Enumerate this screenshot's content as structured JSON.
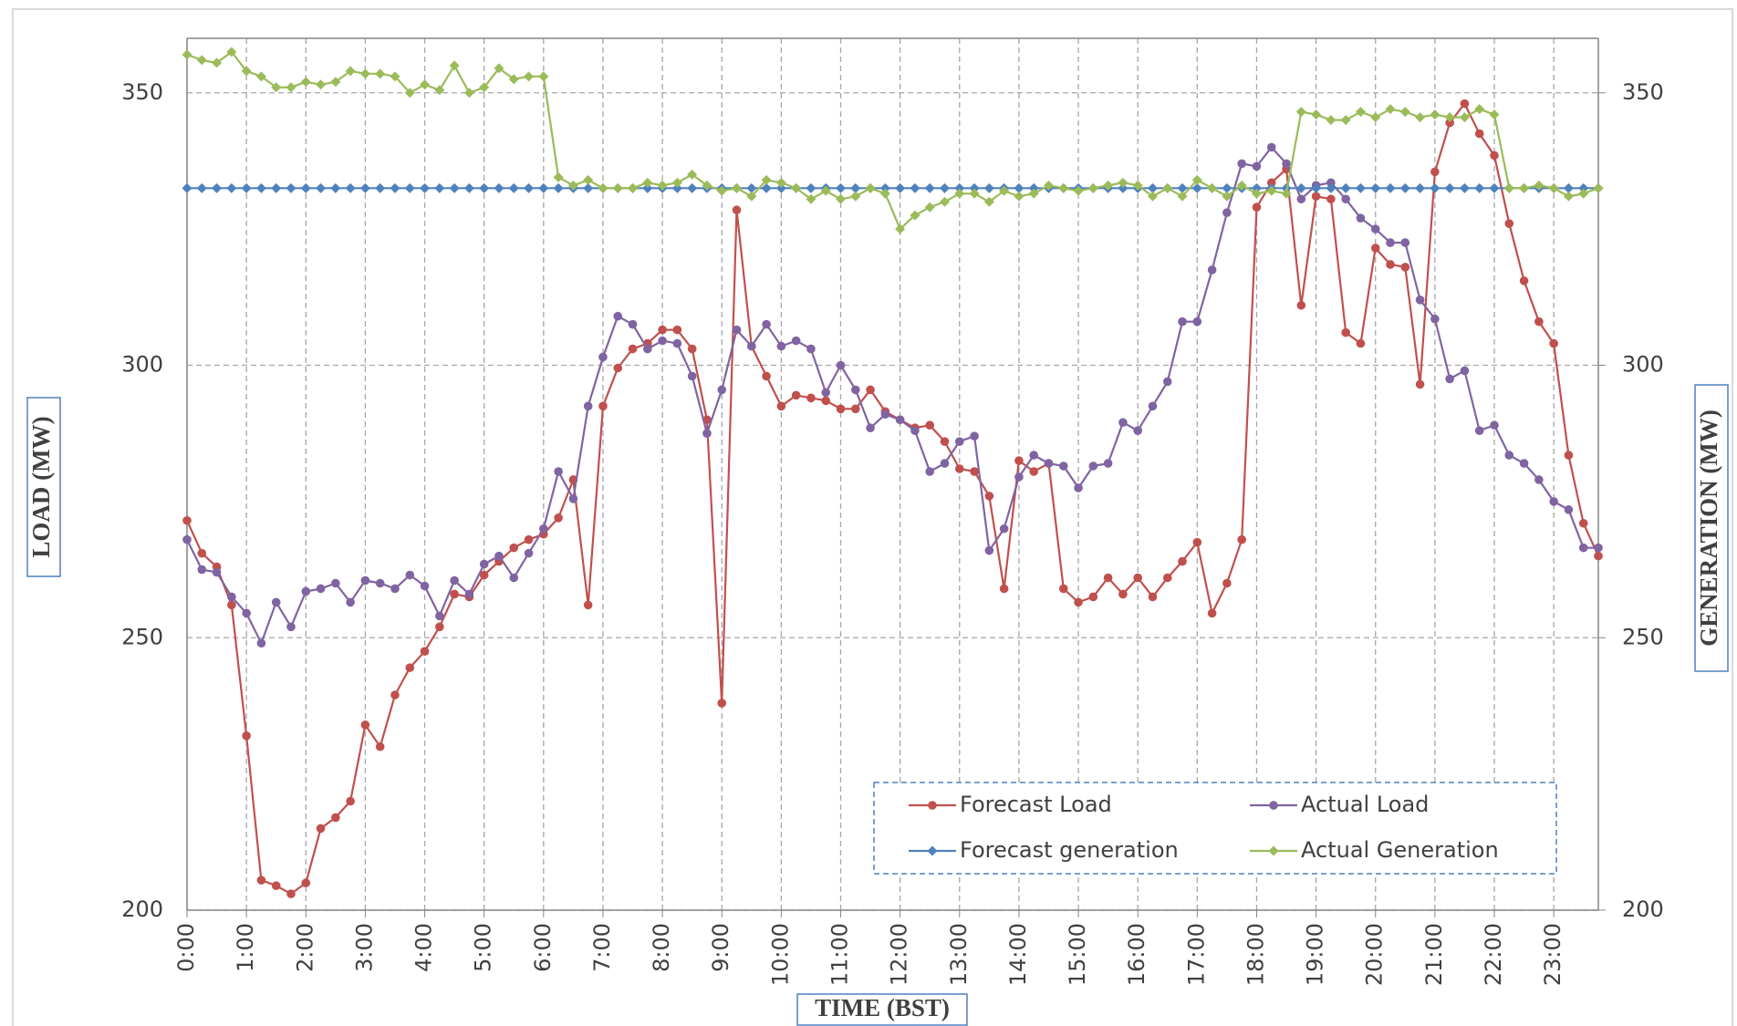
{
  "chart_data": {
    "type": "line",
    "x_label": "TIME (BST)",
    "y_label": "LOAD (MW)",
    "y2_label": "GENERATION (MW)",
    "categories": [
      "0:00",
      null,
      null,
      null,
      "1:00",
      null,
      null,
      null,
      "2:00",
      null,
      null,
      null,
      "3:00",
      null,
      null,
      null,
      "4:00",
      null,
      null,
      null,
      "5:00",
      null,
      null,
      null,
      "6:00",
      null,
      null,
      null,
      "7:00",
      null,
      null,
      null,
      "8:00",
      null,
      null,
      null,
      "9:00",
      null,
      null,
      null,
      "10:00",
      null,
      null,
      null,
      "11:00",
      null,
      null,
      null,
      "12:00",
      null,
      null,
      null,
      "13:00",
      null,
      null,
      null,
      "14:00",
      null,
      null,
      null,
      "15:00",
      null,
      null,
      null,
      "16:00",
      null,
      null,
      null,
      "17:00",
      null,
      null,
      null,
      "18:00",
      null,
      null,
      null,
      "19:00",
      null,
      null,
      null,
      "20:00",
      null,
      null,
      null,
      "21:00",
      null,
      null,
      null,
      "22:00",
      null,
      null,
      null,
      "23:00",
      null,
      null,
      null
    ],
    "ylim": [
      200,
      360
    ],
    "yticks": [
      200,
      250,
      300,
      350
    ],
    "y2lim": [
      200,
      360
    ],
    "y2ticks": [
      200,
      250,
      300,
      350
    ],
    "grid": true,
    "legend": "lower right",
    "series": [
      {
        "name": "Forecast Load",
        "color": "#c0504d",
        "marker": "circle",
        "values": [
          271.5,
          265.5,
          263,
          256,
          232,
          205.5,
          204.5,
          203,
          205,
          215,
          217,
          220,
          234,
          230,
          239.5,
          244.5,
          247.5,
          252,
          258,
          257.5,
          261.5,
          264,
          266.5,
          268,
          269,
          272,
          279,
          256,
          292.5,
          299.5,
          303,
          304,
          306.5,
          306.5,
          303,
          290,
          238,
          328.5,
          303.5,
          298,
          292.5,
          294.5,
          294,
          293.5,
          292,
          292,
          295.5,
          291.5,
          290,
          288.5,
          289,
          286,
          281,
          280.5,
          276,
          259,
          282.5,
          280.5,
          282,
          259,
          256.5,
          257.5,
          261,
          258,
          261,
          257.5,
          261,
          264,
          267.5,
          254.5,
          260,
          268,
          329,
          333.5,
          336,
          311,
          331,
          330.5,
          306,
          304,
          321.5,
          318.5,
          318,
          296.5,
          335.5,
          344.5,
          348,
          342.5,
          338.5,
          326,
          315.5,
          308,
          304,
          283.5,
          271,
          265
        ]
      },
      {
        "name": "Actual Load",
        "color": "#8064a2",
        "marker": "circle",
        "values": [
          268,
          262.5,
          262,
          257.5,
          254.5,
          249,
          256.5,
          252,
          258.5,
          259,
          260,
          256.5,
          260.5,
          260,
          259,
          261.5,
          259.5,
          254,
          260.5,
          258,
          263.5,
          265,
          261,
          265.5,
          270,
          280.5,
          275.5,
          292.5,
          301.5,
          309,
          307.5,
          303,
          304.5,
          304,
          298,
          287.5,
          295.5,
          306.5,
          303.5,
          307.5,
          303.5,
          304.5,
          303,
          295,
          300,
          295.5,
          288.5,
          291,
          290,
          288,
          280.5,
          282,
          286,
          287,
          266,
          270,
          279.5,
          283.5,
          282,
          281.5,
          277.5,
          281.5,
          282,
          289.5,
          288,
          292.5,
          297,
          308,
          308,
          317.5,
          328,
          337,
          336.5,
          340,
          337,
          330.5,
          333,
          333.5,
          330.5,
          327,
          325,
          322.5,
          322.5,
          312,
          308.5,
          297.5,
          299,
          288,
          289,
          283.5,
          282,
          279,
          275,
          273.5,
          266.5,
          266.5
        ]
      },
      {
        "name": "Forecast generation",
        "color": "#4f81bd",
        "marker": "diamond",
        "axis": "y2",
        "values": [
          332.5,
          332.5,
          332.5,
          332.5,
          332.5,
          332.5,
          332.5,
          332.5,
          332.5,
          332.5,
          332.5,
          332.5,
          332.5,
          332.5,
          332.5,
          332.5,
          332.5,
          332.5,
          332.5,
          332.5,
          332.5,
          332.5,
          332.5,
          332.5,
          332.5,
          332.5,
          332.5,
          332.5,
          332.5,
          332.5,
          332.5,
          332.5,
          332.5,
          332.5,
          332.5,
          332.5,
          332.5,
          332.5,
          332.5,
          332.5,
          332.5,
          332.5,
          332.5,
          332.5,
          332.5,
          332.5,
          332.5,
          332.5,
          332.5,
          332.5,
          332.5,
          332.5,
          332.5,
          332.5,
          332.5,
          332.5,
          332.5,
          332.5,
          332.5,
          332.5,
          332.5,
          332.5,
          332.5,
          332.5,
          332.5,
          332.5,
          332.5,
          332.5,
          332.5,
          332.5,
          332.5,
          332.5,
          332.5,
          332.5,
          332.5,
          332.5,
          332.5,
          332.5,
          332.5,
          332.5,
          332.5,
          332.5,
          332.5,
          332.5,
          332.5,
          332.5,
          332.5,
          332.5,
          332.5,
          332.5,
          332.5,
          332.5,
          332.5,
          332.5,
          332.5,
          332.5
        ]
      },
      {
        "name": "Actual Generation",
        "color": "#9bbb59",
        "marker": "diamond",
        "axis": "y2",
        "values": [
          357,
          356,
          355.5,
          357.5,
          354,
          353,
          351,
          351,
          352,
          351.5,
          352,
          354,
          353.5,
          353.5,
          353,
          350,
          351.5,
          350.5,
          355,
          350,
          351,
          354.5,
          352.5,
          353,
          353,
          334.5,
          333,
          334,
          332.5,
          332.5,
          332.5,
          333.5,
          333,
          333.5,
          335,
          333,
          332,
          332.5,
          331,
          334,
          333.5,
          332.5,
          330.5,
          332,
          330.5,
          331,
          332.5,
          331.5,
          325,
          327.5,
          329,
          330,
          331.5,
          331.5,
          330,
          332,
          331,
          331.5,
          333,
          332.5,
          332,
          332.5,
          333,
          333.5,
          333,
          331,
          332.5,
          331,
          334,
          332.5,
          331,
          333,
          331.5,
          332,
          331.5,
          346.5,
          346,
          345,
          345,
          346.5,
          345.5,
          347,
          346.5,
          345.5,
          346,
          345.5,
          345.5,
          347,
          346,
          332.5,
          332.5,
          333,
          332.5,
          331,
          331.5,
          332.5
        ]
      }
    ]
  }
}
